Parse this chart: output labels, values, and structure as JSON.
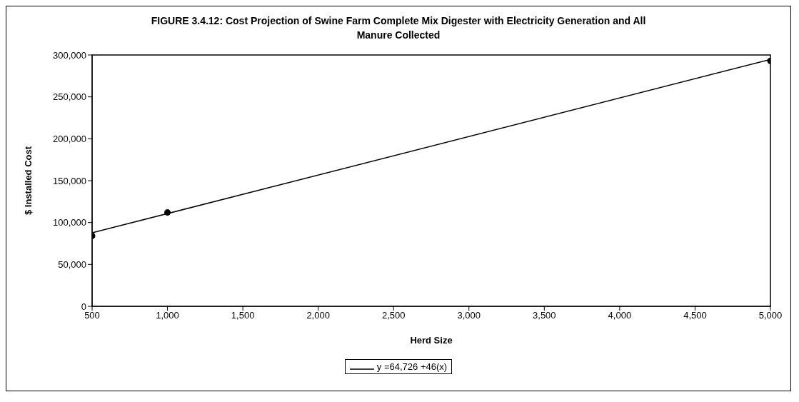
{
  "chart_data": {
    "type": "scatter",
    "title": "FIGURE 3.4.12: Cost Projection of Swine Farm Complete Mix Digester with Electricity Generation and All Manure Collected",
    "xlabel": "Herd Size",
    "ylabel": "$ Installed Cost",
    "series": [
      {
        "color": "#000000",
        "marker": "circle",
        "x": [
          500,
          1000,
          5000
        ],
        "values": [
          84000,
          112000,
          293000
        ]
      },
      {
        "type": "line",
        "name": "y =64,726 +46(x)",
        "color": "#000000",
        "x": [
          500,
          5000
        ],
        "values": [
          87700,
          294700
        ]
      }
    ],
    "xlim": [
      500,
      5000
    ],
    "xticks": [
      {
        "value": 500,
        "label": "500"
      },
      {
        "value": 1000,
        "label": "1,000"
      },
      {
        "value": 1500,
        "label": "1,500"
      },
      {
        "value": 2000,
        "label": "2,000"
      },
      {
        "value": 2500,
        "label": "2,500"
      },
      {
        "value": 3000,
        "label": "3,000"
      },
      {
        "value": 3500,
        "label": "3,500"
      },
      {
        "value": 4000,
        "label": "4,000"
      },
      {
        "value": 4500,
        "label": "4,500"
      },
      {
        "value": 5000,
        "label": "5,000"
      }
    ],
    "ylim": [
      0,
      300000
    ],
    "yticks": [
      {
        "value": 0,
        "label": "0"
      },
      {
        "value": 50000,
        "label": "50,000"
      },
      {
        "value": 100000,
        "label": "100,000"
      },
      {
        "value": 150000,
        "label": "150,000"
      },
      {
        "value": 200000,
        "label": "200,000"
      },
      {
        "value": 250000,
        "label": "250,000"
      },
      {
        "value": 300000,
        "label": "300,000"
      }
    ],
    "legend": "bottom",
    "grid": false
  }
}
